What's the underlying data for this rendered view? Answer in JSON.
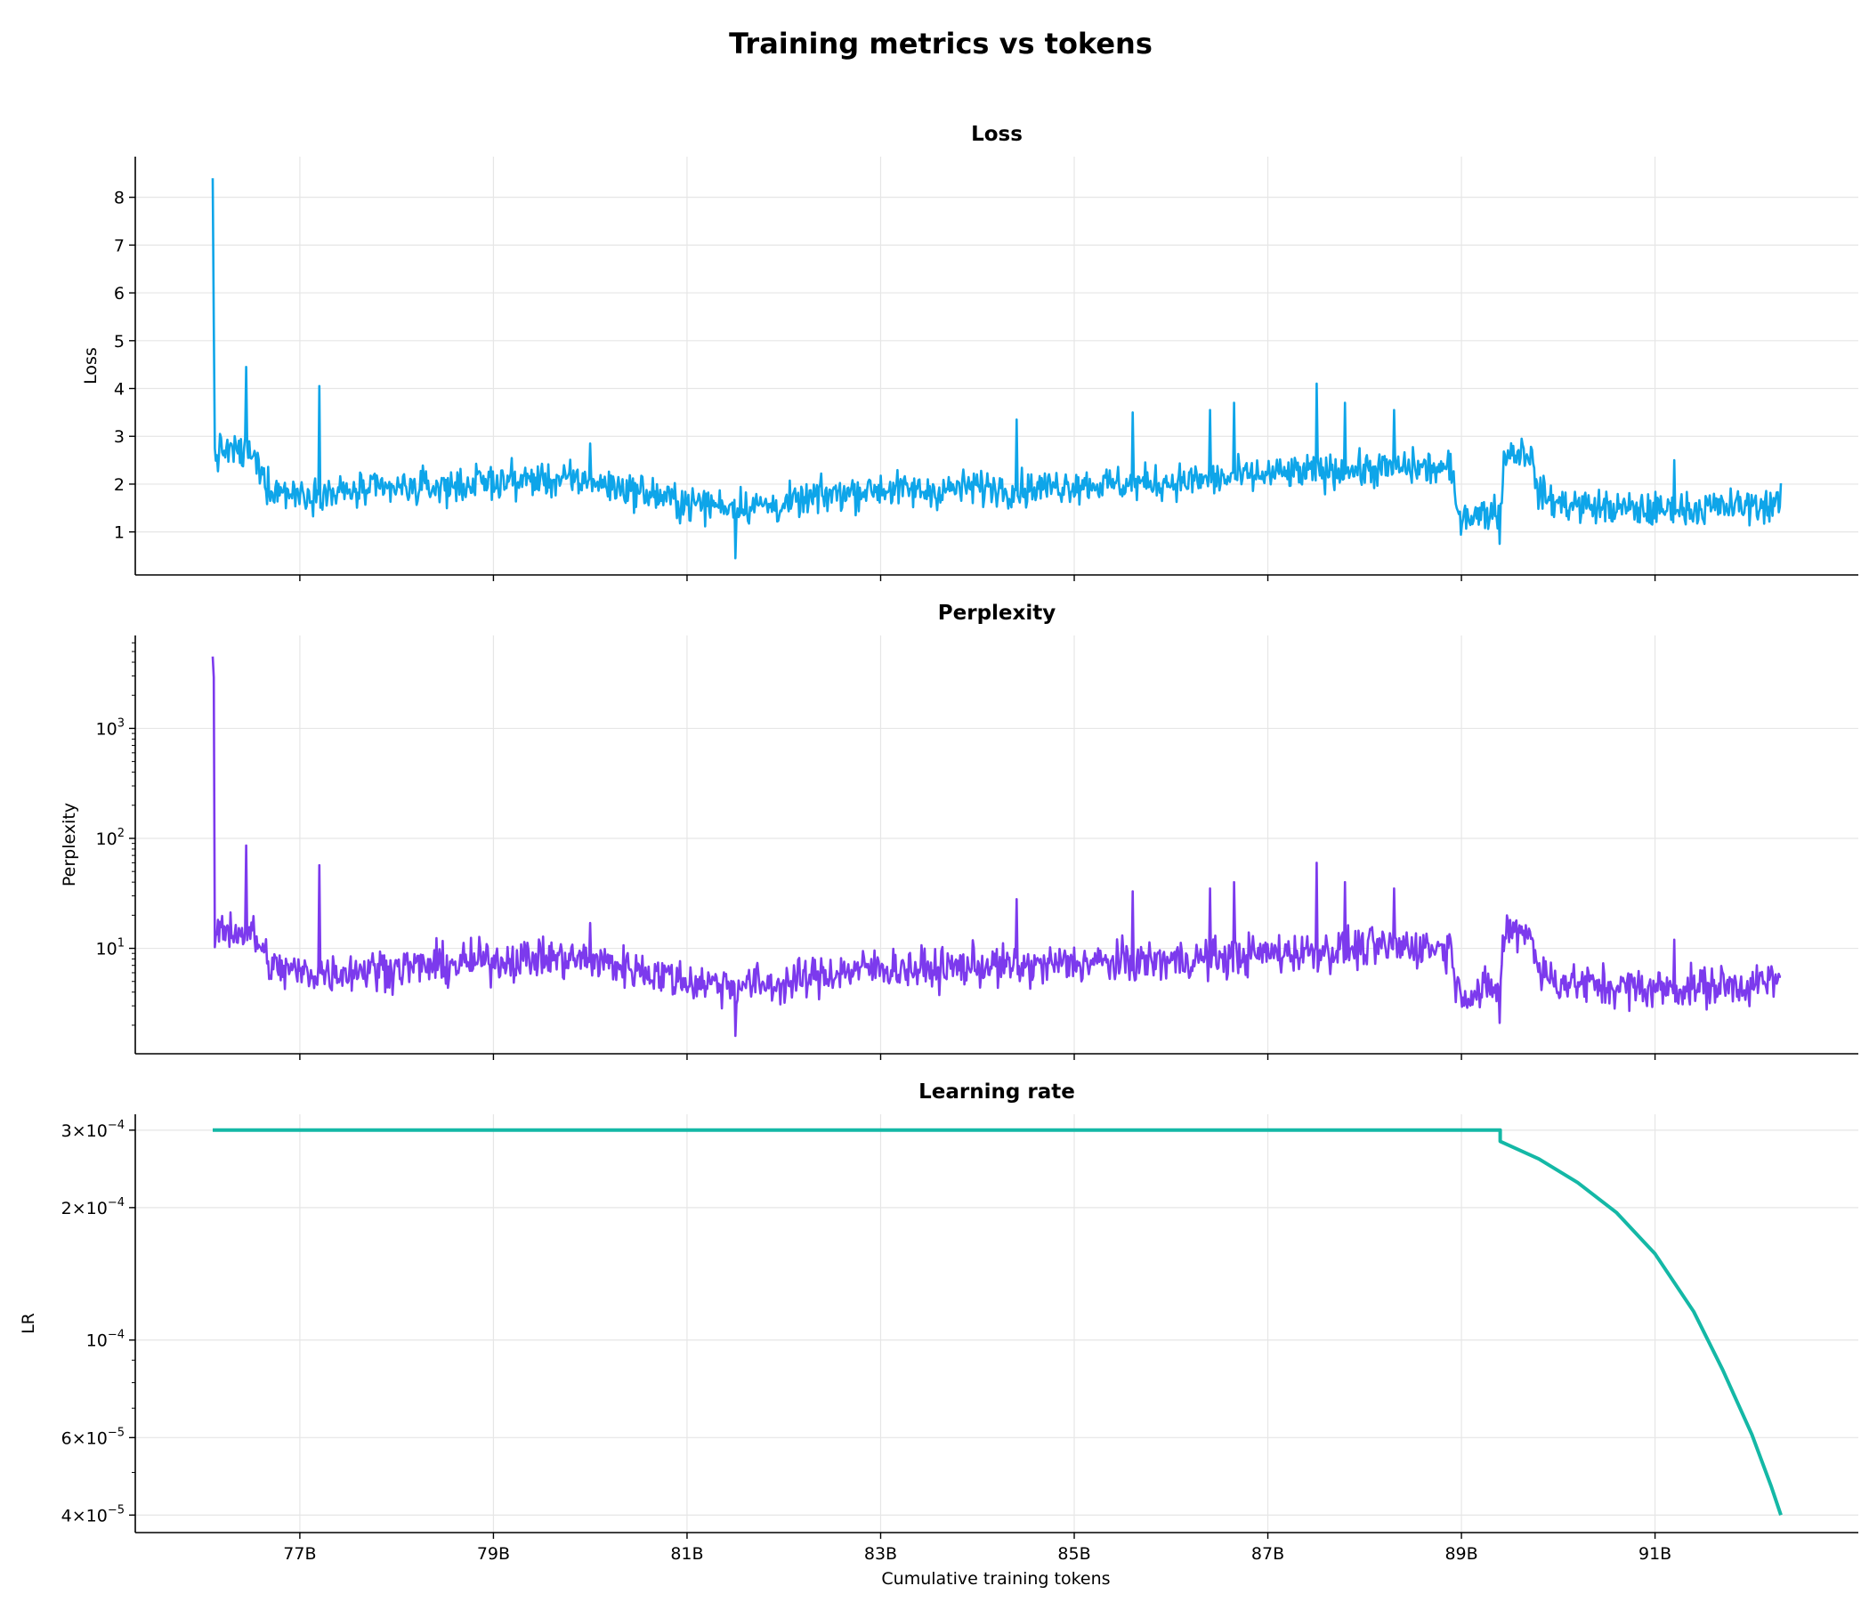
{
  "figure": {
    "title": "Training metrics vs tokens",
    "xlabel": "Cumulative training tokens"
  },
  "chart_data": [
    {
      "type": "line",
      "title": "Loss",
      "xlabel": "Cumulative training tokens",
      "ylabel": "Loss",
      "xlim": [
        75.3,
        93.1
      ],
      "ylim": [
        0.1,
        8.85
      ],
      "xticks": [
        {
          "value": 77,
          "label": "77B"
        },
        {
          "value": 79,
          "label": "79B"
        },
        {
          "value": 81,
          "label": "81B"
        },
        {
          "value": 83,
          "label": "83B"
        },
        {
          "value": 85,
          "label": "85B"
        },
        {
          "value": 87,
          "label": "87B"
        },
        {
          "value": 89,
          "label": "89B"
        },
        {
          "value": 91,
          "label": "91B"
        }
      ],
      "yticks": [
        {
          "value": 1,
          "label": "1"
        },
        {
          "value": 2,
          "label": "2"
        },
        {
          "value": 3,
          "label": "3"
        },
        {
          "value": 4,
          "label": "4"
        },
        {
          "value": 5,
          "label": "5"
        },
        {
          "value": 6,
          "label": "6"
        },
        {
          "value": 7,
          "label": "7"
        },
        {
          "value": 8,
          "label": "8"
        }
      ],
      "yscale": "linear",
      "grid": true,
      "color": "#0ea5e9",
      "series": [
        {
          "x": [
            76.1,
            76.12,
            76.2,
            76.3,
            76.45,
            76.5,
            76.7,
            77.0,
            77.3,
            77.6,
            78.0,
            78.5,
            79.0,
            79.5,
            80.0,
            80.5,
            81.0,
            81.5,
            82.0,
            82.5,
            83.0,
            83.5,
            84.0,
            84.5,
            85.0,
            85.5,
            86.0,
            86.5,
            87.0,
            87.5,
            88.0,
            88.5,
            88.9,
            88.95,
            89.2,
            89.4,
            89.45,
            89.7,
            89.8,
            90.0,
            90.5,
            91.0,
            91.5,
            92.0,
            92.3
          ],
          "y": [
            8.4,
            2.6,
            2.7,
            2.7,
            2.6,
            2.6,
            1.9,
            1.8,
            1.8,
            1.85,
            1.9,
            1.95,
            2.05,
            2.1,
            2.05,
            1.85,
            1.6,
            1.55,
            1.55,
            1.8,
            1.9,
            1.85,
            1.95,
            1.9,
            2.0,
            2.0,
            2.05,
            2.1,
            2.2,
            2.25,
            2.3,
            2.35,
            2.3,
            1.4,
            1.35,
            1.5,
            2.65,
            2.7,
            1.8,
            1.6,
            1.5,
            1.45,
            1.5,
            1.55,
            1.6
          ],
          "spikes": [
            {
              "x": 76.1,
              "y": 8.4
            },
            {
              "x": 76.45,
              "y": 4.45
            },
            {
              "x": 77.2,
              "y": 4.05
            },
            {
              "x": 80.0,
              "y": 2.85
            },
            {
              "x": 81.5,
              "y": 0.45
            },
            {
              "x": 84.4,
              "y": 3.35
            },
            {
              "x": 85.6,
              "y": 3.5
            },
            {
              "x": 86.4,
              "y": 3.55
            },
            {
              "x": 86.65,
              "y": 3.7
            },
            {
              "x": 87.5,
              "y": 4.1
            },
            {
              "x": 87.8,
              "y": 3.7
            },
            {
              "x": 88.3,
              "y": 3.55
            },
            {
              "x": 89.4,
              "y": 0.75
            },
            {
              "x": 91.2,
              "y": 2.5
            }
          ]
        }
      ]
    },
    {
      "type": "line",
      "title": "Perplexity",
      "xlabel": "Cumulative training tokens",
      "ylabel": "Perplexity",
      "xlim": [
        75.3,
        93.1
      ],
      "ylim": [
        1.1,
        7000
      ],
      "yscale": "log",
      "xticks": [
        {
          "value": 77,
          "label": "77B"
        },
        {
          "value": 79,
          "label": "79B"
        },
        {
          "value": 81,
          "label": "81B"
        },
        {
          "value": 83,
          "label": "83B"
        },
        {
          "value": 85,
          "label": "85B"
        },
        {
          "value": 87,
          "label": "87B"
        },
        {
          "value": 89,
          "label": "89B"
        },
        {
          "value": 91,
          "label": "91B"
        }
      ],
      "yticks": [
        {
          "value": 10,
          "base": "10",
          "exp": "1"
        },
        {
          "value": 100,
          "base": "10",
          "exp": "2"
        },
        {
          "value": 1000,
          "base": "10",
          "exp": "3"
        }
      ],
      "grid": true,
      "color": "#7c3aed",
      "series": [
        {
          "x": [
            76.1,
            76.12,
            76.2,
            76.3,
            76.45,
            76.5,
            76.7,
            77.0,
            77.3,
            77.6,
            78.0,
            78.5,
            79.0,
            79.5,
            80.0,
            80.5,
            81.0,
            81.5,
            82.0,
            82.5,
            83.0,
            83.5,
            84.0,
            84.5,
            85.0,
            85.5,
            86.0,
            86.5,
            87.0,
            87.5,
            88.0,
            88.5,
            88.9,
            88.95,
            89.2,
            89.4,
            89.45,
            89.7,
            89.8,
            90.0,
            90.5,
            91.0,
            91.5,
            92.0,
            92.3
          ],
          "y": [
            4500,
            13.5,
            14.9,
            14.9,
            13.5,
            13.5,
            6.7,
            6.0,
            6.0,
            6.4,
            6.7,
            7.0,
            7.8,
            8.2,
            7.8,
            6.4,
            5.0,
            4.7,
            4.7,
            6.0,
            6.7,
            6.4,
            7.0,
            6.7,
            7.4,
            7.4,
            7.8,
            8.2,
            9.0,
            9.5,
            10.0,
            10.5,
            10.0,
            4.1,
            3.9,
            4.5,
            14.2,
            14.9,
            6.0,
            5.0,
            4.5,
            4.3,
            4.5,
            4.7,
            5.0
          ],
          "spikes": [
            {
              "x": 76.1,
              "y": 4500
            },
            {
              "x": 76.45,
              "y": 86
            },
            {
              "x": 77.2,
              "y": 57
            },
            {
              "x": 80.0,
              "y": 17
            },
            {
              "x": 81.5,
              "y": 1.6
            },
            {
              "x": 84.4,
              "y": 28
            },
            {
              "x": 85.6,
              "y": 33
            },
            {
              "x": 86.4,
              "y": 35
            },
            {
              "x": 86.65,
              "y": 40
            },
            {
              "x": 87.5,
              "y": 60
            },
            {
              "x": 87.8,
              "y": 40
            },
            {
              "x": 88.3,
              "y": 35
            },
            {
              "x": 89.4,
              "y": 2.1
            },
            {
              "x": 91.2,
              "y": 12
            }
          ]
        }
      ]
    },
    {
      "type": "line",
      "title": "Learning rate",
      "xlabel": "Cumulative training tokens",
      "ylabel": "LR",
      "xlim": [
        75.3,
        93.1
      ],
      "ylim": [
        3.65e-05,
        0.000326
      ],
      "yscale": "log",
      "xticks": [
        {
          "value": 77,
          "label": "77B"
        },
        {
          "value": 79,
          "label": "79B"
        },
        {
          "value": 81,
          "label": "81B"
        },
        {
          "value": 83,
          "label": "83B"
        },
        {
          "value": 85,
          "label": "85B"
        },
        {
          "value": 87,
          "label": "87B"
        },
        {
          "value": 89,
          "label": "89B"
        },
        {
          "value": 91,
          "label": "91B"
        }
      ],
      "yticks": [
        {
          "value": 4e-05,
          "mant": "4",
          "base": "10",
          "exp": "−5"
        },
        {
          "value": 6e-05,
          "mant": "6",
          "base": "10",
          "exp": "−5"
        },
        {
          "value": 0.0001,
          "mant": "",
          "base": "10",
          "exp": "−4"
        },
        {
          "value": 0.0002,
          "mant": "2",
          "base": "10",
          "exp": "−4"
        },
        {
          "value": 0.0003,
          "mant": "3",
          "base": "10",
          "exp": "−4"
        }
      ],
      "grid": true,
      "color": "#14b8a6",
      "series": [
        {
          "x": [
            76.1,
            89.4,
            89.4,
            89.8,
            90.2,
            90.6,
            91.0,
            91.4,
            91.7,
            92.0,
            92.2,
            92.3
          ],
          "y": [
            0.0003,
            0.0003,
            0.000283,
            0.000258,
            0.000228,
            0.000195,
            0.000157,
            0.000116,
            8.55e-05,
            6.1e-05,
            4.65e-05,
            4e-05
          ]
        }
      ]
    }
  ]
}
